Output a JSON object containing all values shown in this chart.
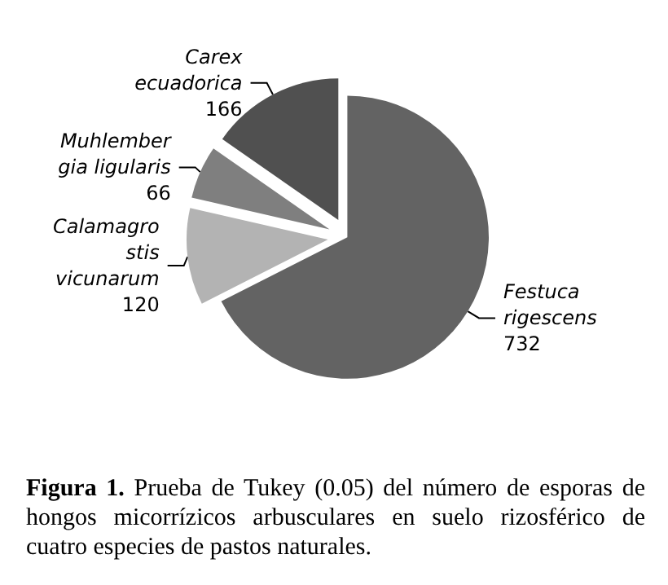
{
  "chart_data": {
    "type": "pie",
    "categories": [
      "Festuca\nrigescens",
      "Calamagro\nstis\nvicunarum",
      "Muhlember\ngia ligularis",
      "Carex\necuadorica"
    ],
    "values": [
      732,
      120,
      66,
      166
    ],
    "colors": [
      "#636363",
      "#b3b3b3",
      "#7f7f7f",
      "#505050"
    ],
    "data_labels": true,
    "legend": false,
    "annotations": [
      "Figura 1. Prueba de Tukey (0.05) del número de esporas de hongos micorrízicos arbusculares en suelo rizosférico de  cuatro especies de pastos naturales."
    ]
  }
}
